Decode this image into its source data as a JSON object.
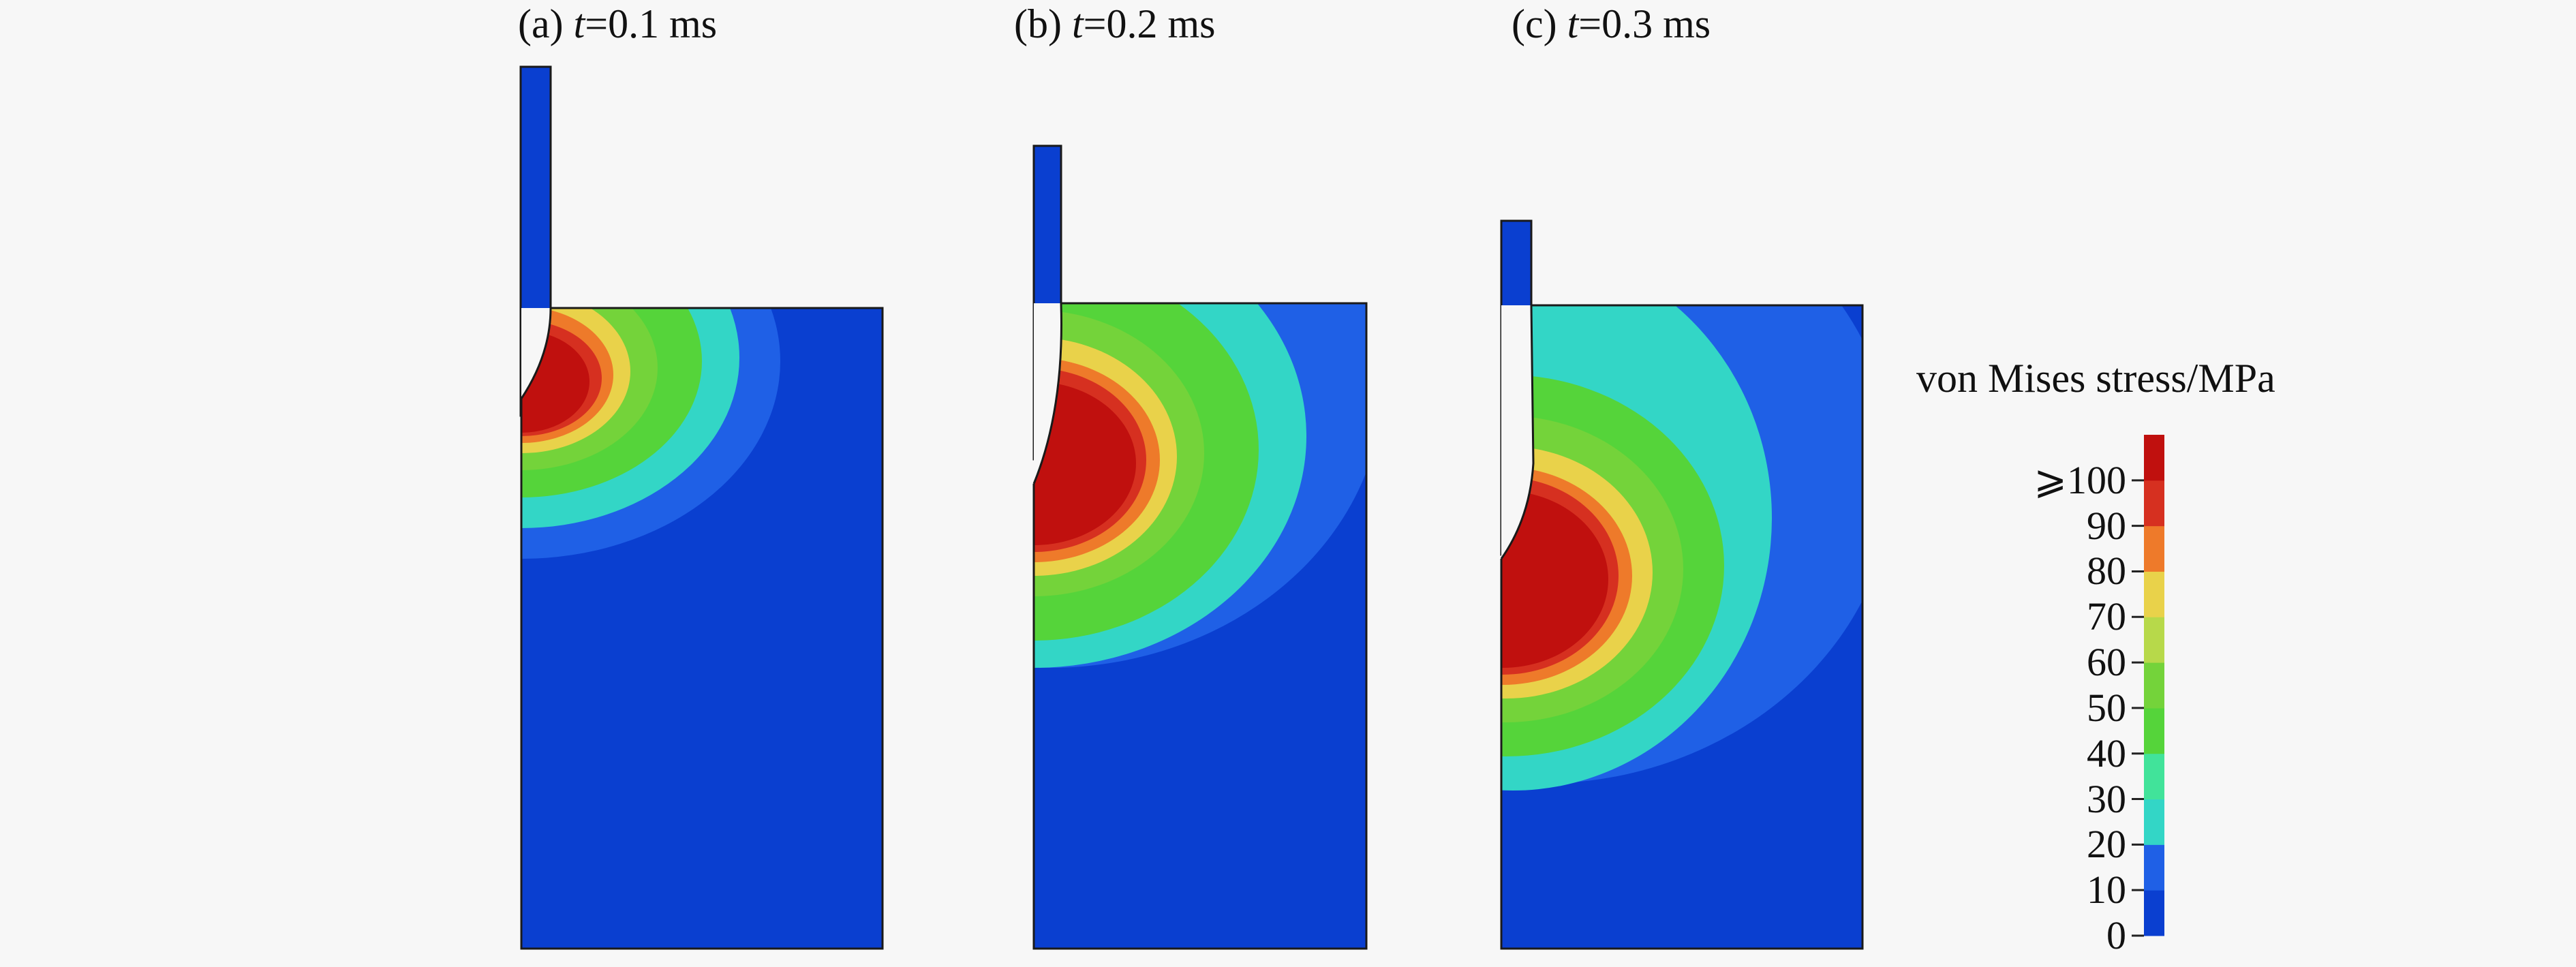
{
  "panels": [
    {
      "label": "(a) ",
      "var": "t",
      "rest": "=0.1 ms"
    },
    {
      "label": "(b) ",
      "var": "t",
      "rest": "=0.2 ms"
    },
    {
      "label": "(c) ",
      "var": "t",
      "rest": "=0.3 ms"
    }
  ],
  "colorbar": {
    "title": "von Mises stress/MPa",
    "ticks": [
      "0",
      "10",
      "20",
      "30",
      "40",
      "50",
      "60",
      "70",
      "80",
      "90",
      "⩾100"
    ],
    "colors": [
      "#0a3fd0",
      "#1f60e6",
      "#33d6c6",
      "#41e39a",
      "#55d43a",
      "#74d33a",
      "#b7d94a",
      "#e9d24a",
      "#ee7a2a",
      "#d63020",
      "#c0100e"
    ]
  },
  "colors": {
    "background": "#f7f7f7",
    "base": "#0a3fd0",
    "outer_band": "#1f60e6",
    "cyan": "#33d6c6",
    "green": "#55d43a",
    "yellow": "#e9d24a",
    "orange": "#ee7a2a",
    "red": "#c0100e",
    "outline": "#1a1a1a"
  }
}
